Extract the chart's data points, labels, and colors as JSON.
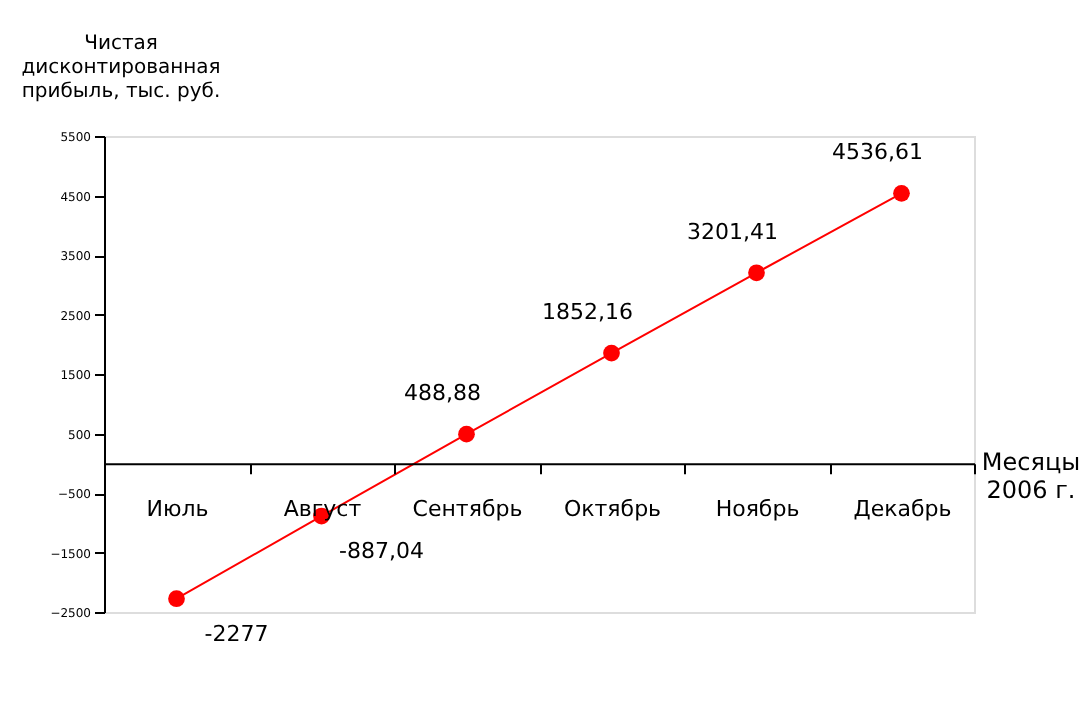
{
  "chart_data": {
    "type": "line",
    "ylabel": "Чистая дисконтированная прибыль, тыс. руб.",
    "xlabel": "Месяцы 2006 г.",
    "categories": [
      "Июль",
      "Август",
      "Сентябрь",
      "Октябрь",
      "Ноябрь",
      "Декабрь"
    ],
    "series": [
      {
        "color": "#ff0000",
        "values": [
          -2277,
          -887.04,
          488.88,
          1852.16,
          3201.41,
          4536.61
        ],
        "value_labels": [
          "-2277",
          "-887,04",
          "488,88",
          "1852,16",
          "3201,41",
          "4536,61"
        ]
      }
    ],
    "ylim": [
      -2500,
      5500
    ],
    "yticks": [
      -2500,
      -1500,
      -500,
      500,
      1500,
      2500,
      3500,
      4500,
      5500
    ],
    "marker": "circle",
    "line_style": "solid",
    "grid": false,
    "legend": false
  }
}
